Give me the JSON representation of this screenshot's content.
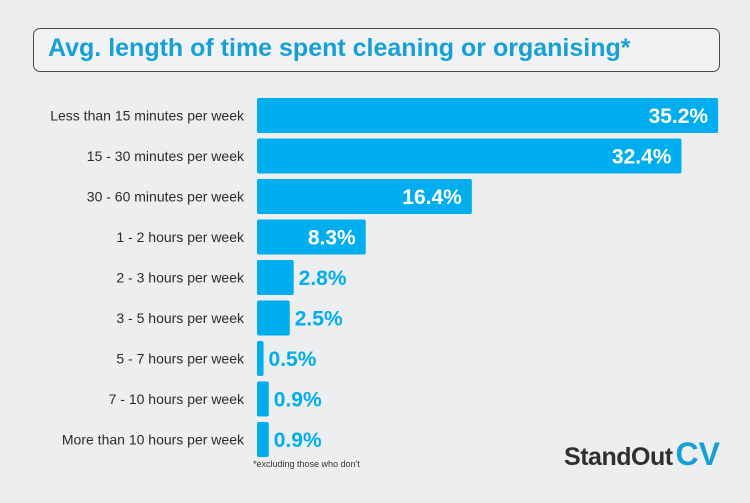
{
  "chart_data": {
    "type": "bar",
    "orientation": "horizontal",
    "title": "Avg. length of time spent cleaning or organising*",
    "categories": [
      "Less than 15 minutes per week",
      "15 - 30 minutes per week",
      "30 - 60 minutes per week",
      "1 - 2 hours per week",
      "2 - 3 hours per week",
      "3 - 5 hours per week",
      "5 - 7 hours per week",
      "7 - 10 hours per week",
      "More than 10 hours per week"
    ],
    "values": [
      35.2,
      32.4,
      16.4,
      8.3,
      2.8,
      2.5,
      0.5,
      0.9,
      0.9
    ],
    "value_labels": [
      "35.2%",
      "32.4%",
      "16.4%",
      "8.3%",
      "2.8%",
      "2.5%",
      "0.5%",
      "0.9%",
      "0.9%"
    ],
    "bar_color": "#00aeef",
    "grid": false,
    "legend": "none"
  },
  "footnote": "*excluding those who don't",
  "logo": {
    "primary": "StandOut",
    "accent": "CV"
  },
  "colors": {
    "background": "#eceeef",
    "accent": "#17a0d8",
    "bar": "#00aeef",
    "text": "#333333"
  }
}
